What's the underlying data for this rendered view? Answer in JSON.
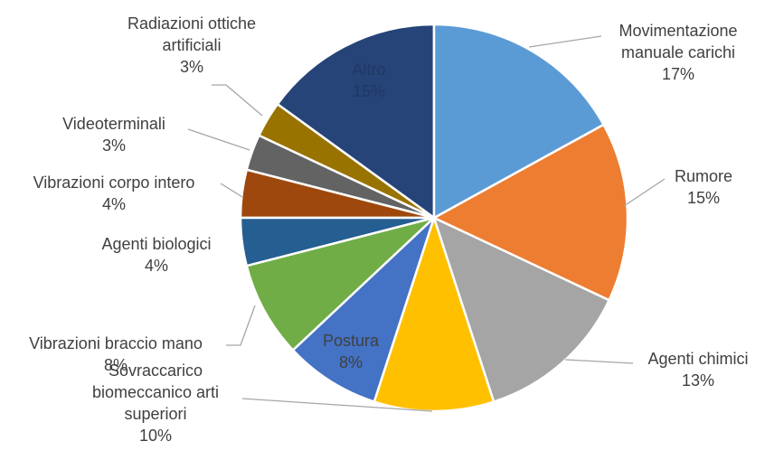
{
  "chart_data": {
    "type": "pie",
    "categories": [
      "Movimentazione manuale carichi",
      "Rumore",
      "Agenti chimici",
      "Sovraccarico biomeccanico arti superiori",
      "Postura",
      "Vibrazioni braccio mano",
      "Agenti biologici",
      "Vibrazioni corpo intero",
      "Videoterminali",
      "Radiazioni ottiche artificiali",
      "Altro"
    ],
    "values": [
      17,
      15,
      13,
      10,
      8,
      8,
      4,
      4,
      3,
      3,
      15
    ],
    "value_labels": [
      "17%",
      "15%",
      "13%",
      "10%",
      "8%",
      "8%",
      "4%",
      "4%",
      "3%",
      "3%",
      "15%"
    ],
    "colors": [
      "#5b9bd5",
      "#ed7d31",
      "#a5a5a5",
      "#ffc000",
      "#4472c4",
      "#70ad47",
      "#255e91",
      "#9e480e",
      "#636363",
      "#997300",
      "#264478"
    ]
  }
}
